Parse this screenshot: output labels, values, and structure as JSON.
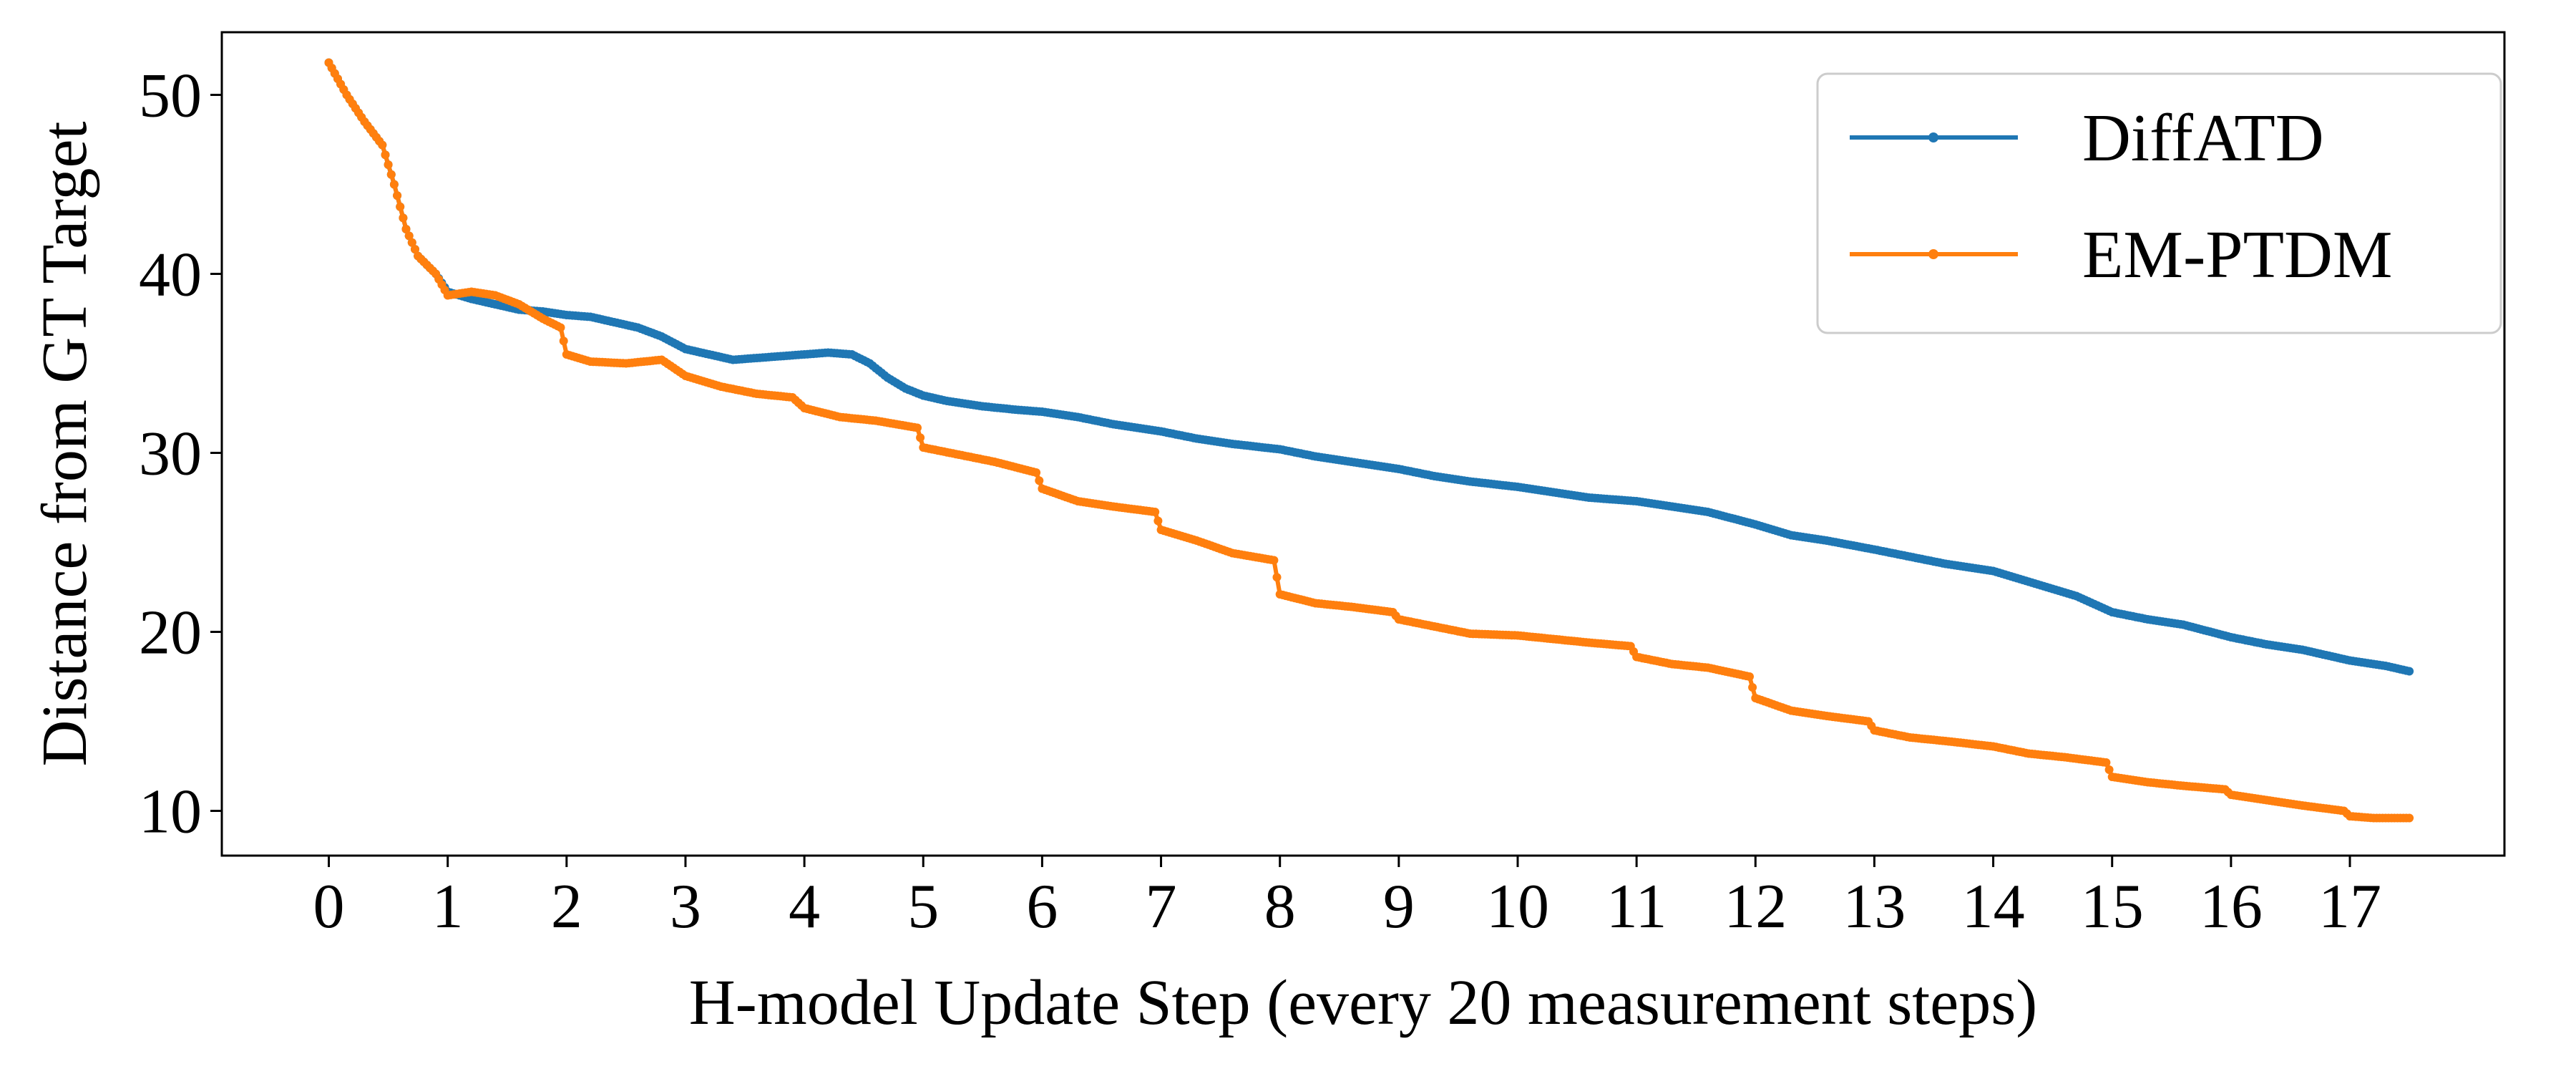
{
  "chart_data": {
    "type": "line",
    "title": "",
    "xlabel": "H-model Update Step (every 20 measurement steps)",
    "ylabel": "Distance from GT Target",
    "xlim": [
      -0.9,
      18.3
    ],
    "ylim": [
      7.5,
      53.5
    ],
    "xticks": [
      0,
      1,
      2,
      3,
      4,
      5,
      6,
      7,
      8,
      9,
      10,
      11,
      12,
      13,
      14,
      15,
      16,
      17
    ],
    "yticks": [
      10,
      20,
      30,
      40,
      50
    ],
    "grid": false,
    "legend_position": "top-right",
    "series": [
      {
        "name": "DiffATD",
        "color": "#1f77b4",
        "points": [
          [
            0,
            51.8
          ],
          [
            0.15,
            50.0
          ],
          [
            0.3,
            48.5
          ],
          [
            0.45,
            47.2
          ],
          [
            0.55,
            45.0
          ],
          [
            0.65,
            42.5
          ],
          [
            0.75,
            41.0
          ],
          [
            0.9,
            40.0
          ],
          [
            1.0,
            39.0
          ],
          [
            1.1,
            38.8
          ],
          [
            1.2,
            38.6
          ],
          [
            1.4,
            38.3
          ],
          [
            1.6,
            38.0
          ],
          [
            1.8,
            37.9
          ],
          [
            2.0,
            37.7
          ],
          [
            2.2,
            37.6
          ],
          [
            2.4,
            37.3
          ],
          [
            2.6,
            37.0
          ],
          [
            2.8,
            36.5
          ],
          [
            3.0,
            35.8
          ],
          [
            3.2,
            35.5
          ],
          [
            3.4,
            35.2
          ],
          [
            3.6,
            35.3
          ],
          [
            3.8,
            35.4
          ],
          [
            4.0,
            35.5
          ],
          [
            4.2,
            35.6
          ],
          [
            4.4,
            35.5
          ],
          [
            4.55,
            35.0
          ],
          [
            4.7,
            34.2
          ],
          [
            4.85,
            33.6
          ],
          [
            5.0,
            33.2
          ],
          [
            5.2,
            32.9
          ],
          [
            5.5,
            32.6
          ],
          [
            5.8,
            32.4
          ],
          [
            6.0,
            32.3
          ],
          [
            6.3,
            32.0
          ],
          [
            6.6,
            31.6
          ],
          [
            7.0,
            31.2
          ],
          [
            7.3,
            30.8
          ],
          [
            7.6,
            30.5
          ],
          [
            8.0,
            30.2
          ],
          [
            8.3,
            29.8
          ],
          [
            8.6,
            29.5
          ],
          [
            9.0,
            29.1
          ],
          [
            9.3,
            28.7
          ],
          [
            9.6,
            28.4
          ],
          [
            10.0,
            28.1
          ],
          [
            10.3,
            27.8
          ],
          [
            10.6,
            27.5
          ],
          [
            11.0,
            27.3
          ],
          [
            11.3,
            27.0
          ],
          [
            11.6,
            26.7
          ],
          [
            12.0,
            26.0
          ],
          [
            12.3,
            25.4
          ],
          [
            12.6,
            25.1
          ],
          [
            13.0,
            24.6
          ],
          [
            13.3,
            24.2
          ],
          [
            13.6,
            23.8
          ],
          [
            14.0,
            23.4
          ],
          [
            14.3,
            22.8
          ],
          [
            14.7,
            22.0
          ],
          [
            15.0,
            21.1
          ],
          [
            15.3,
            20.7
          ],
          [
            15.6,
            20.4
          ],
          [
            16.0,
            19.7
          ],
          [
            16.3,
            19.3
          ],
          [
            16.6,
            19.0
          ],
          [
            17.0,
            18.4
          ],
          [
            17.3,
            18.1
          ],
          [
            17.5,
            17.8
          ]
        ]
      },
      {
        "name": "EM-PTDM",
        "color": "#ff7f0e",
        "points": [
          [
            0,
            51.8
          ],
          [
            0.15,
            50.0
          ],
          [
            0.3,
            48.5
          ],
          [
            0.45,
            47.2
          ],
          [
            0.55,
            45.0
          ],
          [
            0.65,
            42.5
          ],
          [
            0.75,
            41.0
          ],
          [
            0.9,
            40.0
          ],
          [
            1.0,
            38.8
          ],
          [
            1.2,
            39.0
          ],
          [
            1.4,
            38.8
          ],
          [
            1.6,
            38.3
          ],
          [
            1.8,
            37.5
          ],
          [
            1.95,
            37.0
          ],
          [
            2.0,
            35.5
          ],
          [
            2.2,
            35.1
          ],
          [
            2.5,
            35.0
          ],
          [
            2.8,
            35.2
          ],
          [
            3.0,
            34.3
          ],
          [
            3.3,
            33.7
          ],
          [
            3.6,
            33.3
          ],
          [
            3.9,
            33.1
          ],
          [
            4.0,
            32.5
          ],
          [
            4.3,
            32.0
          ],
          [
            4.6,
            31.8
          ],
          [
            4.95,
            31.4
          ],
          [
            5.0,
            30.3
          ],
          [
            5.3,
            29.9
          ],
          [
            5.6,
            29.5
          ],
          [
            5.95,
            28.9
          ],
          [
            6.0,
            28.0
          ],
          [
            6.3,
            27.3
          ],
          [
            6.6,
            27.0
          ],
          [
            6.95,
            26.7
          ],
          [
            7.0,
            25.7
          ],
          [
            7.3,
            25.1
          ],
          [
            7.6,
            24.4
          ],
          [
            7.95,
            24.0
          ],
          [
            8.0,
            22.1
          ],
          [
            8.3,
            21.6
          ],
          [
            8.6,
            21.4
          ],
          [
            8.95,
            21.1
          ],
          [
            9.0,
            20.7
          ],
          [
            9.3,
            20.3
          ],
          [
            9.6,
            19.9
          ],
          [
            10.0,
            19.8
          ],
          [
            10.3,
            19.6
          ],
          [
            10.6,
            19.4
          ],
          [
            10.95,
            19.2
          ],
          [
            11.0,
            18.6
          ],
          [
            11.3,
            18.2
          ],
          [
            11.6,
            18.0
          ],
          [
            11.95,
            17.5
          ],
          [
            12.0,
            16.3
          ],
          [
            12.3,
            15.6
          ],
          [
            12.6,
            15.3
          ],
          [
            12.95,
            15.0
          ],
          [
            13.0,
            14.5
          ],
          [
            13.3,
            14.1
          ],
          [
            13.6,
            13.9
          ],
          [
            14.0,
            13.6
          ],
          [
            14.3,
            13.2
          ],
          [
            14.6,
            13.0
          ],
          [
            14.95,
            12.7
          ],
          [
            15.0,
            11.9
          ],
          [
            15.3,
            11.6
          ],
          [
            15.6,
            11.4
          ],
          [
            15.95,
            11.2
          ],
          [
            16.0,
            10.9
          ],
          [
            16.3,
            10.6
          ],
          [
            16.6,
            10.3
          ],
          [
            16.95,
            10.0
          ],
          [
            17.0,
            9.7
          ],
          [
            17.2,
            9.6
          ],
          [
            17.5,
            9.6
          ]
        ]
      }
    ]
  }
}
